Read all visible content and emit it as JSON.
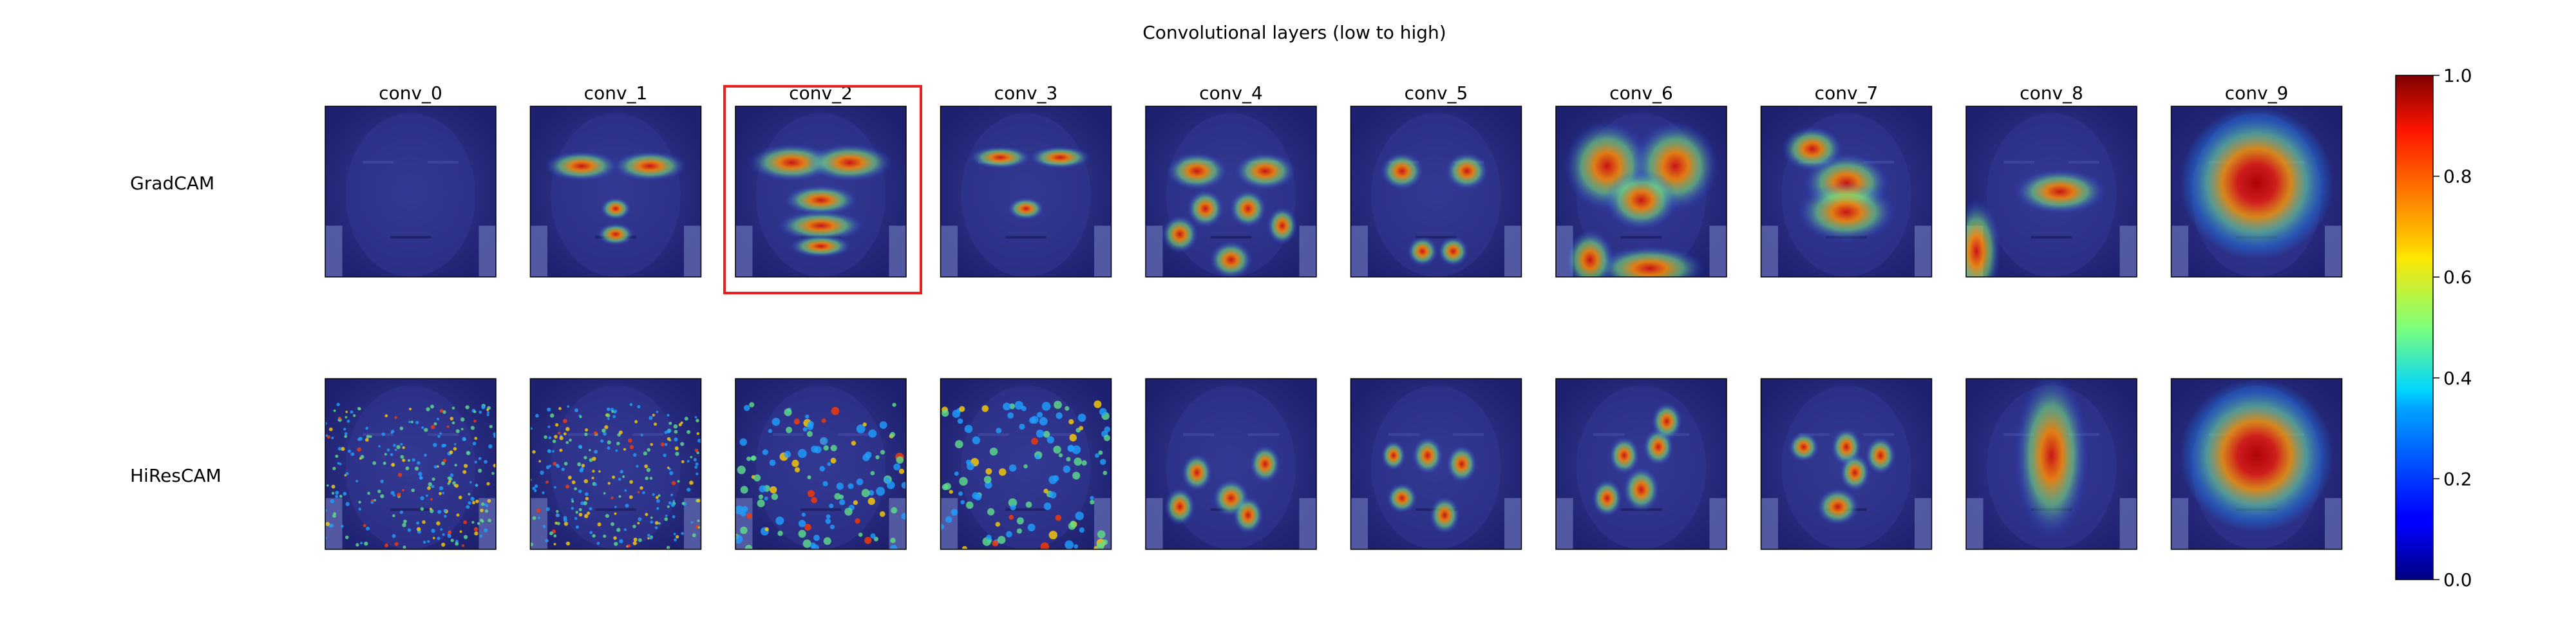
{
  "figure": {
    "title": "Convolutional layers (low to high)",
    "columns": [
      "conv_0",
      "conv_1",
      "conv_2",
      "conv_3",
      "conv_4",
      "conv_5",
      "conv_6",
      "conv_7",
      "conv_8",
      "conv_9"
    ],
    "rows": [
      "GradCAM",
      "HiResCAM"
    ],
    "highlight": {
      "row": 0,
      "column": 2,
      "color": "#e8201f"
    }
  },
  "colorbar": {
    "ticks": [
      "0.0",
      "0.2",
      "0.4",
      "0.6",
      "0.8",
      "1.0"
    ],
    "colormap": "jet",
    "range": [
      0.0,
      1.0
    ]
  },
  "colors": {
    "face_base": "#2b2f86",
    "background": "#ffffff"
  }
}
